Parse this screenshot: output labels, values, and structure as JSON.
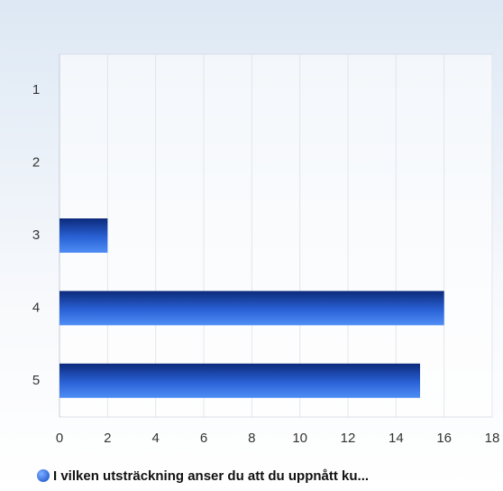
{
  "chart_data": {
    "type": "bar",
    "orientation": "horizontal",
    "categories": [
      "1",
      "2",
      "3",
      "4",
      "5"
    ],
    "series": [
      {
        "name": "I vilken utsträckning anser du att du uppnått ku...",
        "color": "#2a62d6",
        "values": [
          0,
          0,
          2,
          16,
          15
        ]
      }
    ],
    "xlim": [
      0,
      18
    ],
    "xticks": [
      0,
      2,
      4,
      6,
      8,
      10,
      12,
      14,
      16,
      18
    ],
    "grid": true,
    "legend": "bottom"
  }
}
